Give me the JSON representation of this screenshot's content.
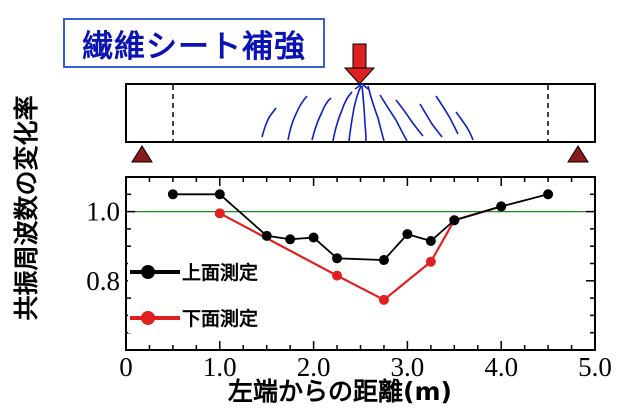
{
  "annotation_box": {
    "label": "繊維シート補強"
  },
  "chart_data": {
    "type": "line",
    "ylabel": "共振周波数の変化率",
    "xlabel": "左端からの距離(m)",
    "xlim": [
      0,
      5.0
    ],
    "ylim": [
      0.6,
      1.1
    ],
    "x_ticks": [
      "0",
      "1.0",
      "2.0",
      "3.0",
      "4.0",
      "5.0"
    ],
    "y_ticks": [
      "0.8",
      "1.0"
    ],
    "reference_line": {
      "y": 1.0,
      "color": "#1a8a1a"
    },
    "series": [
      {
        "name": "上面測定",
        "color": "#000000",
        "x": [
          0.5,
          1.0,
          1.5,
          1.75,
          2.0,
          2.25,
          2.75,
          3.0,
          3.25,
          3.5,
          4.0,
          4.5
        ],
        "y": [
          1.05,
          1.05,
          0.93,
          0.92,
          0.925,
          0.865,
          0.86,
          0.935,
          0.915,
          0.975,
          1.015,
          1.05
        ]
      },
      {
        "name": "下面測定",
        "color": "#e02020",
        "x": [
          1.0,
          2.25,
          2.75,
          3.25,
          3.5,
          4.0
        ],
        "y": [
          0.995,
          0.815,
          0.745,
          0.855,
          0.975,
          1.015
        ]
      }
    ]
  },
  "colors": {
    "support": "#8b1a1a",
    "load_arrow": "#e02020",
    "crack": "#1020c0"
  }
}
